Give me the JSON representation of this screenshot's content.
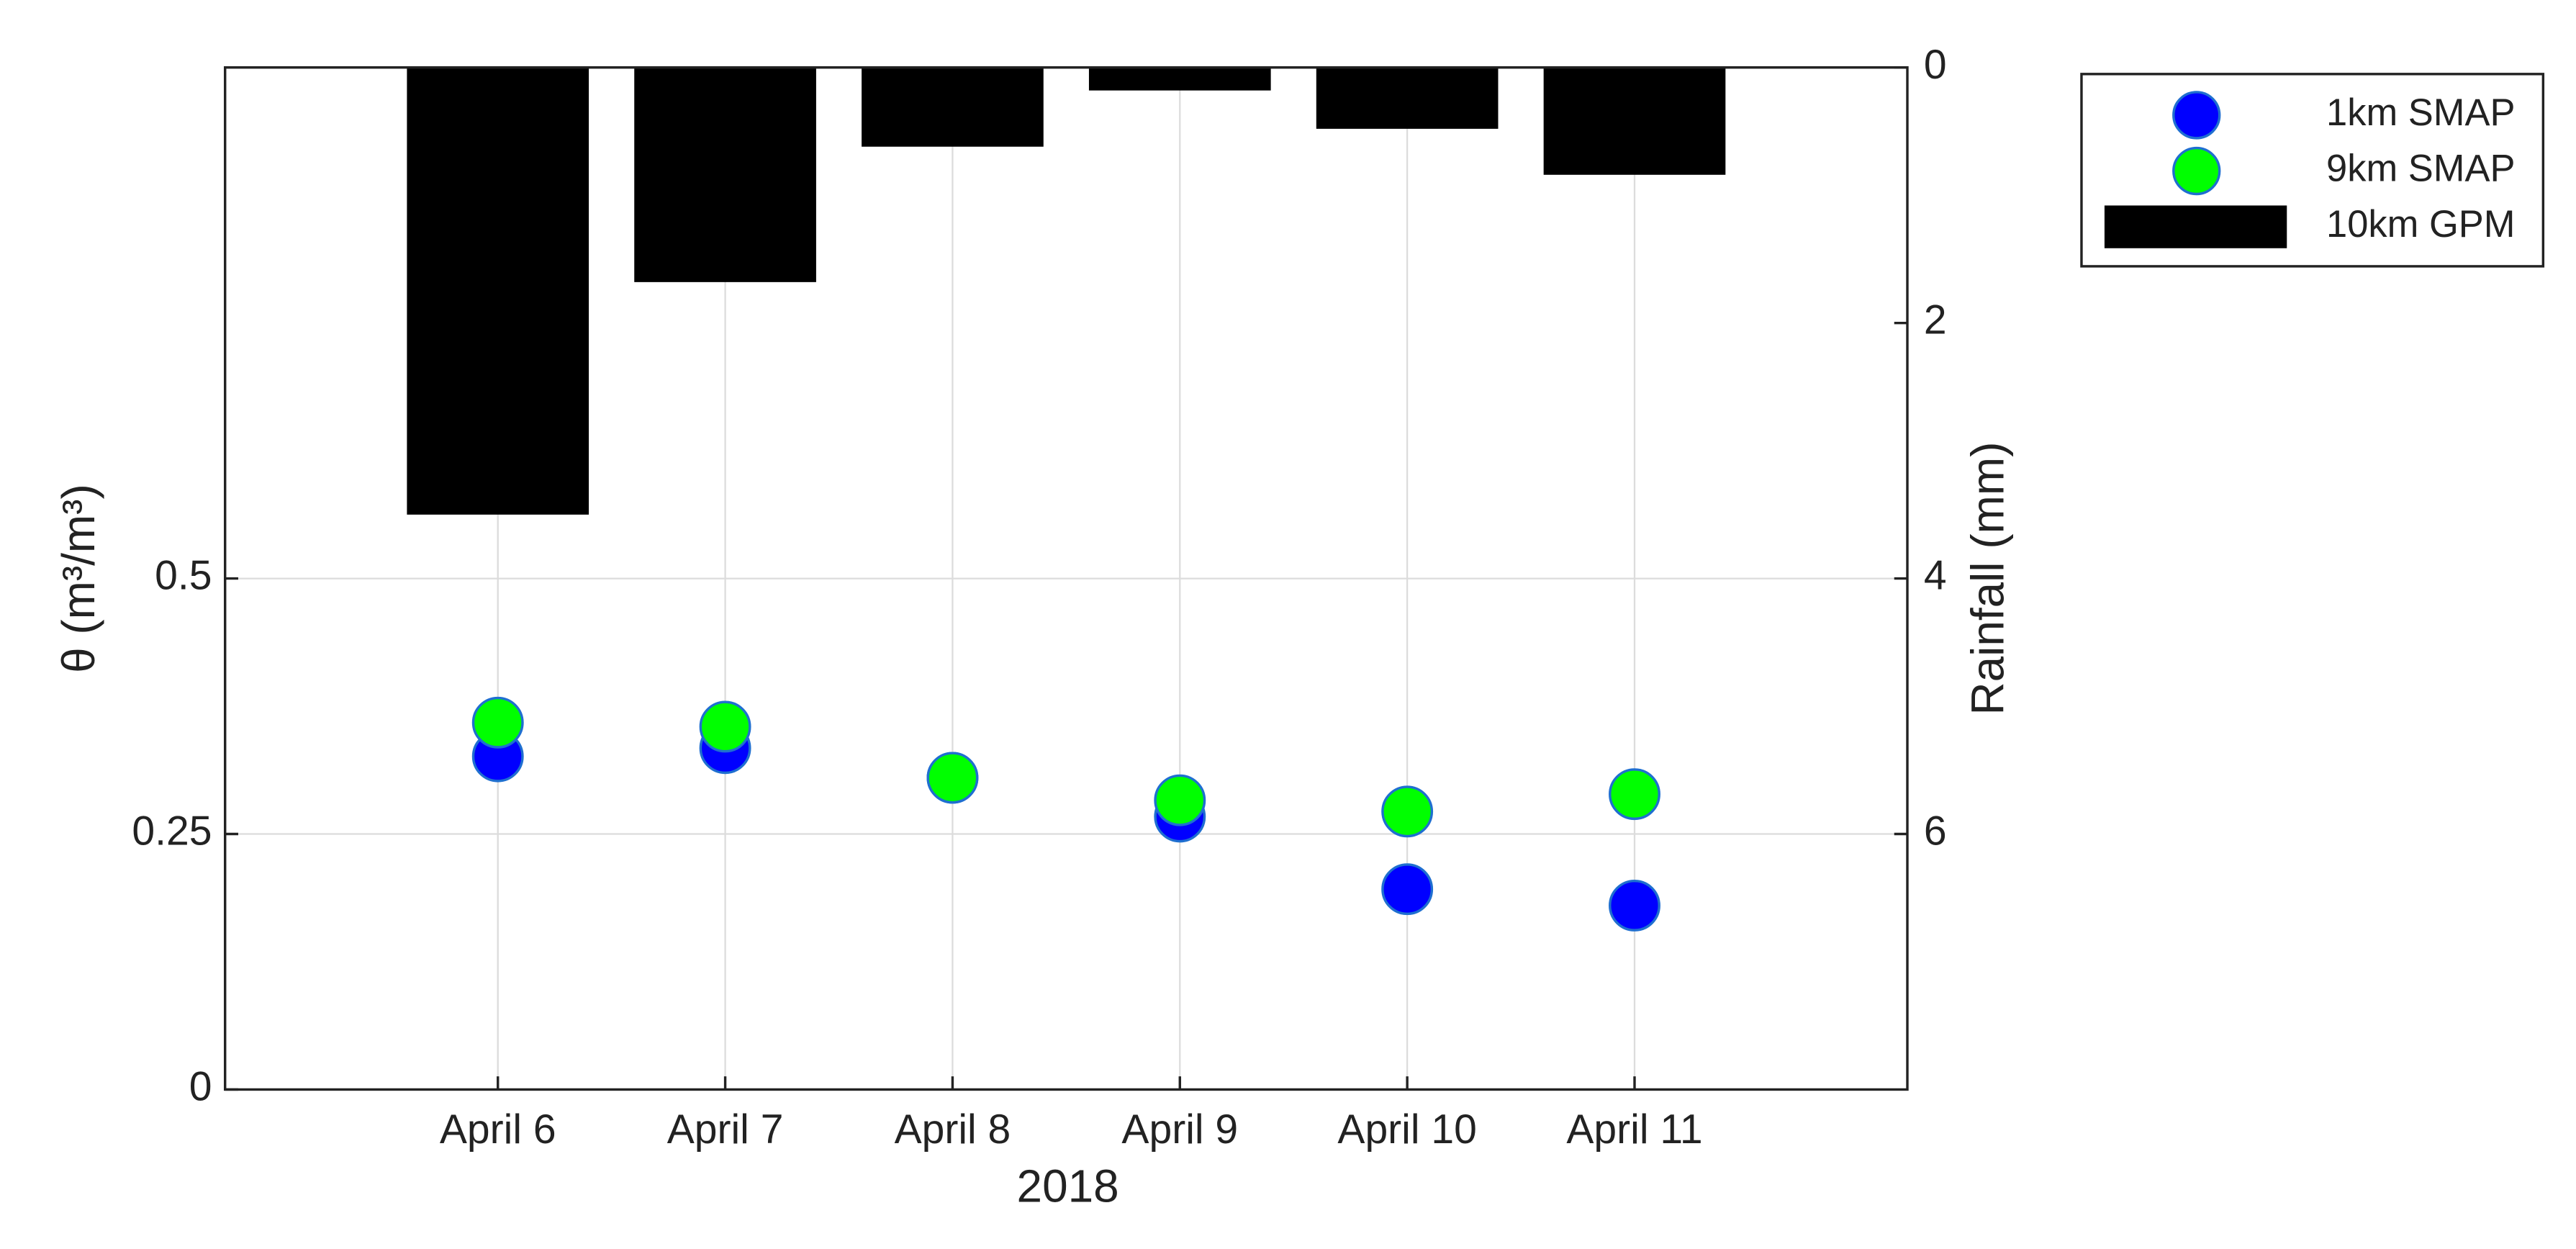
{
  "chart_data": {
    "type": "scatter",
    "x_label": "2018",
    "y_label": "θ (m³/m³)",
    "y2_label": "Rainfall (mm)",
    "categories": [
      "April 6",
      "April 7",
      "April 8",
      "April 9",
      "April 10",
      "April 11"
    ],
    "ylim": [
      0,
      1
    ],
    "yticks": [
      0,
      0.25,
      0.5
    ],
    "y2lim": [
      0,
      8
    ],
    "y2ticks": [
      0,
      2,
      4,
      6
    ],
    "y2_reversed": true,
    "grid": true,
    "legend": "outside-upper-right",
    "series": [
      {
        "name": "1km SMAP",
        "type": "scatter",
        "color": "#0000ff",
        "edge_color": "#1f6fd0",
        "values": [
          0.326,
          0.334,
          0.305,
          0.267,
          0.196,
          0.18
        ]
      },
      {
        "name": "9km SMAP",
        "type": "scatter",
        "color": "#00ff00",
        "edge_color": "#1f6fd0",
        "values": [
          0.359,
          0.355,
          0.305,
          0.283,
          0.272,
          0.289
        ]
      },
      {
        "name": "10km GPM",
        "type": "bar",
        "axis": "y2",
        "color": "#000000",
        "values": [
          3.5,
          1.68,
          0.62,
          0.18,
          0.48,
          0.84
        ]
      }
    ]
  }
}
